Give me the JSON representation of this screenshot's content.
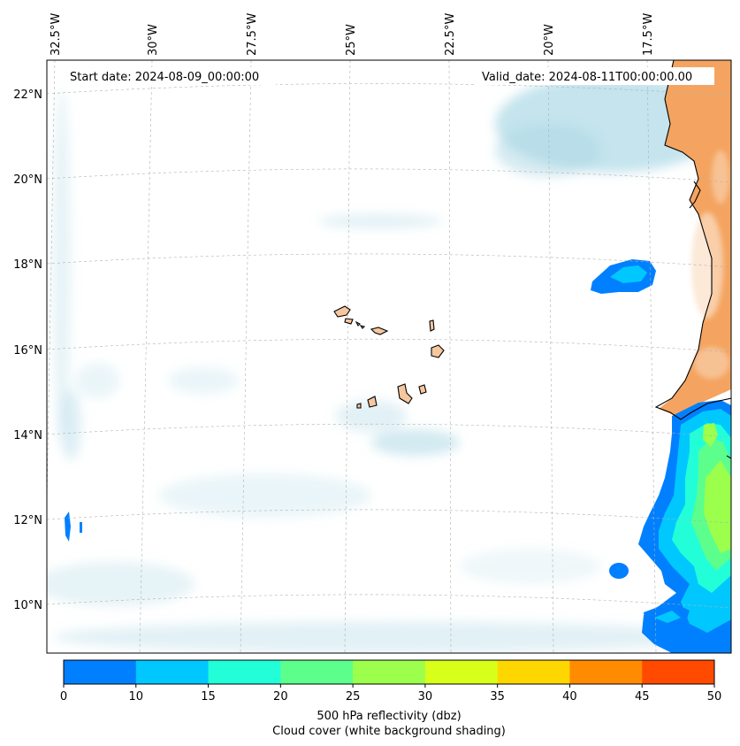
{
  "map": {
    "start_label": "Start date: 2024-08-09_00:00:00",
    "valid_label": "Valid_date: 2024-08-11T00:00:00.00",
    "lon_labels": [
      "32.5°W",
      "30°W",
      "27.5°W",
      "25°W",
      "22.5°W",
      "20°W",
      "17.5°W"
    ],
    "lat_labels": [
      "22°N",
      "20°N",
      "18°N",
      "16°N",
      "14°N",
      "12°N",
      "10°N"
    ]
  },
  "colorbar": {
    "ticks": [
      "0",
      "10",
      "15",
      "20",
      "25",
      "30",
      "35",
      "40",
      "45",
      "50"
    ],
    "colors": [
      "#0080ff",
      "#00c8ff",
      "#22ffd8",
      "#5cff8c",
      "#9cff4c",
      "#d8ff1a",
      "#ffd700",
      "#ff8c00",
      "#ff4a00"
    ],
    "label_line1": "500 hPa reflectivity (dbz)",
    "label_line2": "Cloud cover (white background shading)"
  },
  "colors": {
    "land": "#f4a460",
    "cloud": "#add8e6"
  }
}
